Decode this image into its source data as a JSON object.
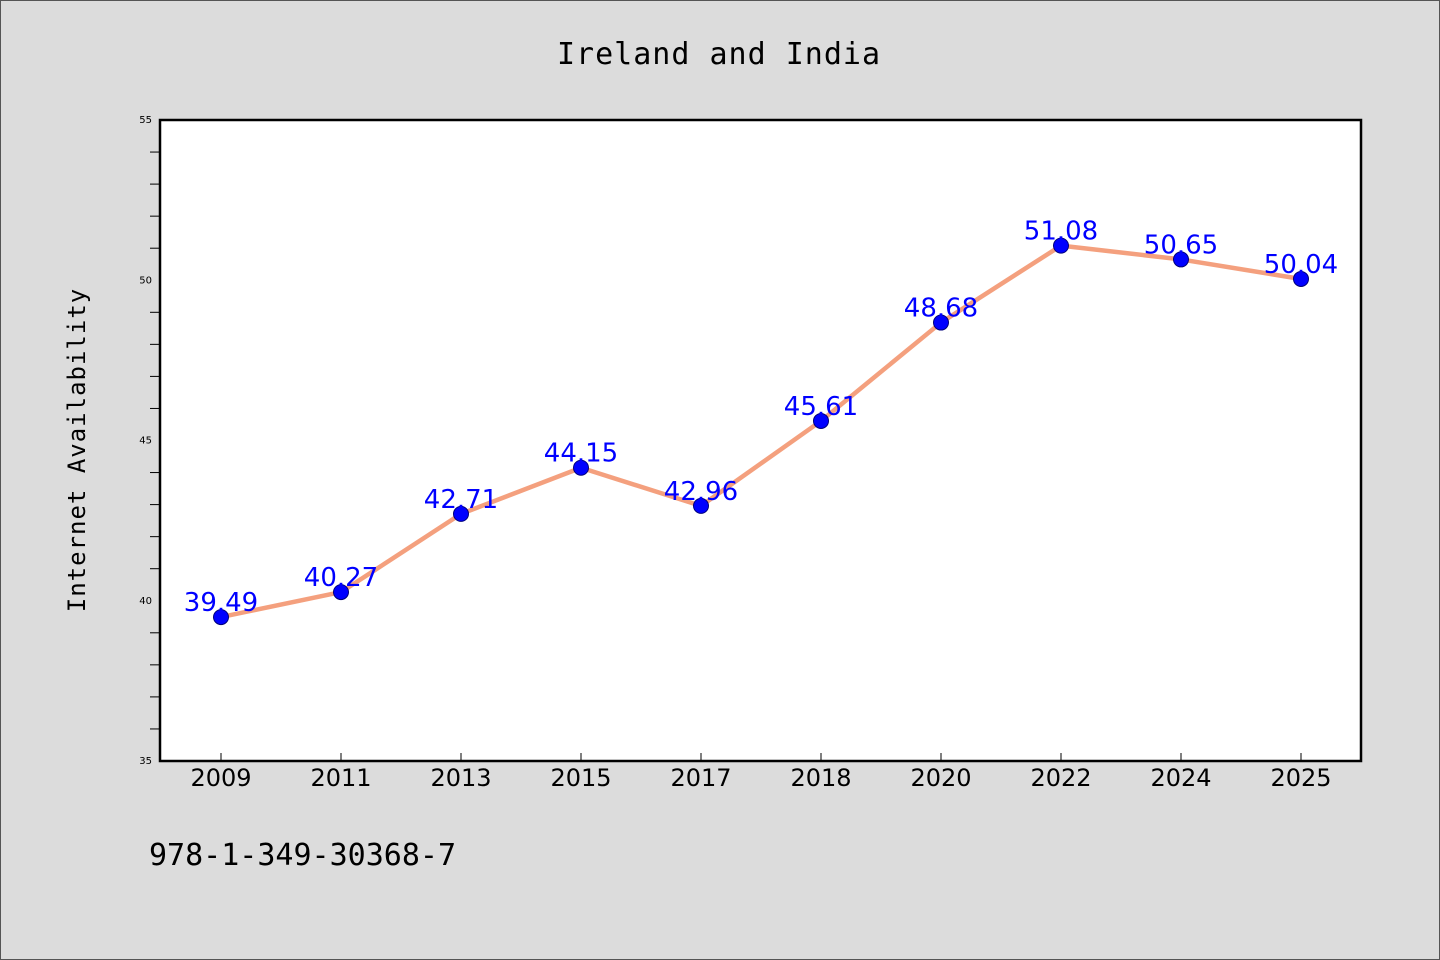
{
  "chart_data": {
    "type": "line",
    "title": "Ireland and India",
    "xlabel": "",
    "ylabel": "Internet Availability",
    "categories": [
      "2009",
      "2011",
      "2013",
      "2015",
      "2017",
      "2018",
      "2020",
      "2022",
      "2024",
      "2025"
    ],
    "series": [
      {
        "values": [
          39.49,
          40.27,
          42.71,
          44.15,
          42.96,
          45.61,
          48.68,
          51.08,
          50.65,
          50.04
        ],
        "line_color": "#f4a07e",
        "marker_color": "#0000ff"
      }
    ],
    "data_labels": [
      "39.49",
      "40.27",
      "42.71",
      "44.15",
      "42.96",
      "45.61",
      "48.68",
      "51.08",
      "50.65",
      "50.04"
    ],
    "ylim": [
      35,
      55
    ],
    "yticks": [
      35,
      40,
      45,
      50,
      55
    ],
    "ytick_labels": [
      "35",
      "40",
      "45",
      "50",
      "55"
    ],
    "y_minor_step": 1,
    "grid": false,
    "legend": "none",
    "colors": {
      "background": "#dcdcdc",
      "plot_background": "#ffffff",
      "line": "#f4a07e",
      "marker": "#0000ff",
      "data_label": "#0000ff"
    }
  },
  "footer": {
    "isbn": "978-1-349-30368-7"
  }
}
